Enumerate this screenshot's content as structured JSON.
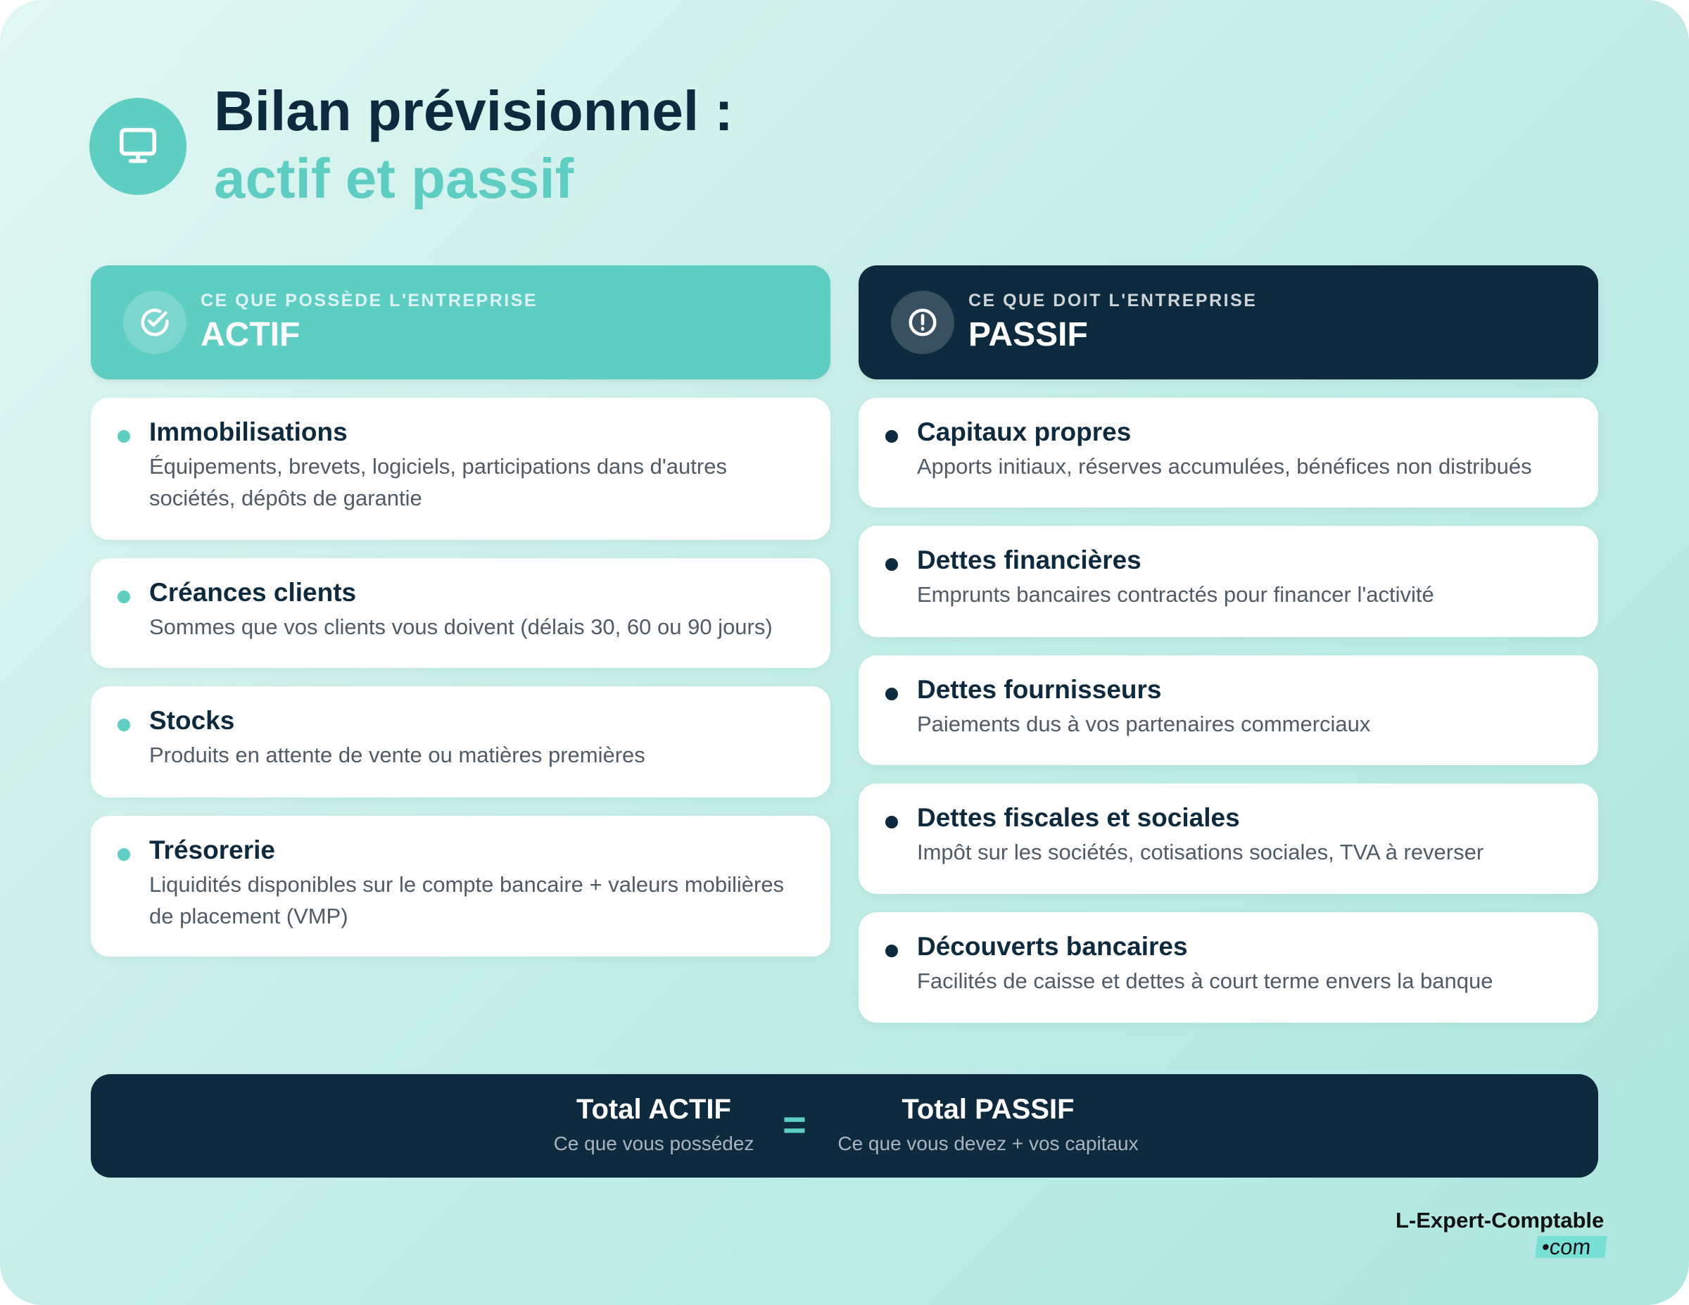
{
  "header": {
    "title_line1": "Bilan prévisionnel :",
    "title_line2": "actif et passif",
    "icon": "monitor-icon"
  },
  "actif": {
    "subtitle": "CE QUE POSSÈDE L'ENTREPRISE",
    "title": "ACTIF",
    "icon": "check-circle-icon",
    "color": "#5ecdc2",
    "items": [
      {
        "title": "Immobilisations",
        "desc": "Équipements, brevets, logiciels, participations dans d'autres sociétés, dépôts de garantie"
      },
      {
        "title": "Créances clients",
        "desc": "Sommes que vos clients vous doivent (délais 30, 60 ou 90 jours)"
      },
      {
        "title": "Stocks",
        "desc": "Produits en attente de vente ou matières premières"
      },
      {
        "title": "Trésorerie",
        "desc": "Liquidités disponibles sur le compte bancaire + valeurs mobilières de placement (VMP)"
      }
    ]
  },
  "passif": {
    "subtitle": "CE QUE DOIT L'ENTREPRISE",
    "title": "PASSIF",
    "icon": "alert-circle-icon",
    "color": "#0d2a3e",
    "items": [
      {
        "title": "Capitaux propres",
        "desc": "Apports initiaux, réserves accumulées, bénéfices non distribués"
      },
      {
        "title": "Dettes financières",
        "desc": "Emprunts bancaires contractés pour financer l'activité"
      },
      {
        "title": "Dettes fournisseurs",
        "desc": "Paiements dus à vos partenaires commerciaux"
      },
      {
        "title": "Dettes fiscales et sociales",
        "desc": "Impôt sur les sociétés, cotisations sociales, TVA à reverser"
      },
      {
        "title": "Découverts bancaires",
        "desc": "Facilités de caisse et dettes à court terme envers la banque"
      }
    ]
  },
  "footer": {
    "left_title": "Total ACTIF",
    "left_sub": "Ce que vous possédez",
    "equals": "=",
    "right_title": "Total PASSIF",
    "right_sub": "Ce que vous devez + vos capitaux"
  },
  "logo": {
    "name": "L-Expert-Comptable",
    "suffix": "•com"
  }
}
